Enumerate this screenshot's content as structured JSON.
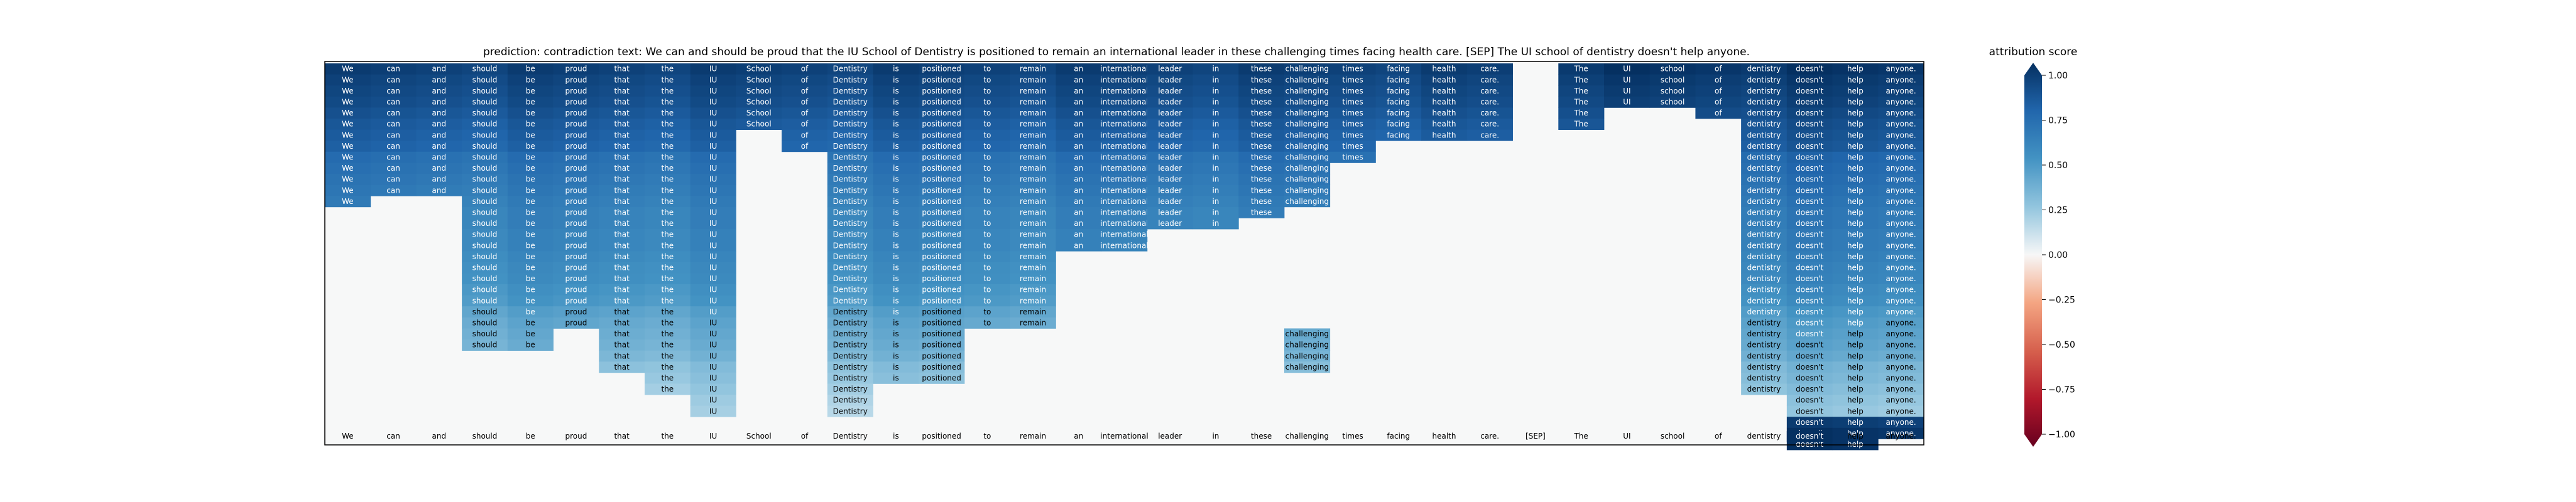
{
  "chart_data": {
    "type": "heatmap",
    "title": "prediction:  contradiction     text:  We can and should be proud that the IU School of Dentistry is positioned to remain an international leader in these challenging times facing health care. [SEP] The UI school of dentistry doesn't help anyone.",
    "tokens": [
      "We",
      "can",
      "and",
      "should",
      "be",
      "proud",
      "that",
      "the",
      "IU",
      "School",
      "of",
      "Dentistry",
      "is",
      "positioned",
      "to",
      "remain",
      "an",
      "international",
      "leader",
      "in",
      "these",
      "challenging",
      "times",
      "facing",
      "health",
      "care.",
      "[SEP]",
      "The",
      "UI",
      "school",
      "of",
      "dentistry",
      "doesn't",
      "help",
      "anyone."
    ],
    "hypothesis_token_count": 9,
    "row_spans": [
      [
        0,
        25,
        27,
        34
      ],
      [
        0,
        25,
        27,
        34
      ],
      [
        0,
        25,
        27,
        34
      ],
      [
        0,
        25,
        27,
        34
      ],
      [
        0,
        25,
        27,
        27,
        30,
        34
      ],
      [
        0,
        25,
        27,
        27,
        31,
        34
      ],
      [
        0,
        8,
        10,
        25,
        31,
        34
      ],
      [
        0,
        8,
        10,
        22,
        31,
        34
      ],
      [
        0,
        8,
        11,
        22,
        31,
        34
      ],
      [
        0,
        8,
        11,
        21,
        31,
        34
      ],
      [
        0,
        8,
        11,
        21,
        31,
        34
      ],
      [
        0,
        8,
        11,
        21,
        31,
        34
      ],
      [
        0,
        0,
        3,
        8,
        11,
        21,
        31,
        34
      ],
      [
        3,
        8,
        11,
        20,
        31,
        34
      ],
      [
        3,
        8,
        11,
        19,
        31,
        34
      ],
      [
        3,
        8,
        11,
        17,
        31,
        34
      ],
      [
        3,
        8,
        11,
        17,
        31,
        34
      ],
      [
        3,
        8,
        11,
        15,
        31,
        34
      ],
      [
        3,
        8,
        11,
        15,
        31,
        34
      ],
      [
        3,
        8,
        11,
        15,
        31,
        34
      ],
      [
        3,
        8,
        11,
        15,
        31,
        34
      ],
      [
        3,
        8,
        11,
        15,
        31,
        34
      ],
      [
        3,
        8,
        11,
        15,
        31,
        34
      ],
      [
        3,
        8,
        11,
        15,
        31,
        34
      ],
      [
        3,
        4,
        6,
        8,
        11,
        13,
        21,
        21,
        31,
        34
      ],
      [
        3,
        4,
        6,
        8,
        11,
        13,
        21,
        21,
        31,
        34
      ],
      [
        6,
        8,
        11,
        13,
        21,
        21,
        31,
        34
      ],
      [
        6,
        8,
        11,
        13,
        21,
        21,
        31,
        34
      ],
      [
        7,
        8,
        11,
        13,
        31,
        34
      ],
      [
        7,
        8,
        11,
        11,
        31,
        34
      ],
      [
        8,
        8,
        11,
        11,
        32,
        34
      ],
      [
        8,
        8,
        11,
        11,
        32,
        34
      ],
      [
        32,
        34
      ],
      [
        32,
        34
      ],
      [
        32,
        33
      ]
    ],
    "value_levels": [
      0.95,
      0.92,
      0.9,
      0.88,
      0.85,
      0.82,
      0.8,
      0.78,
      0.72,
      0.7,
      0.68,
      0.66,
      0.64,
      0.62,
      0.62,
      0.6,
      0.6,
      0.58,
      0.56,
      0.55,
      0.52,
      0.5,
      0.45,
      0.42,
      0.4,
      0.38,
      0.35,
      0.3,
      0.28,
      0.25,
      0.22,
      0.2,
      0.9,
      0.95,
      1.0
    ],
    "x_tick_labels": [
      "We",
      "can",
      "and",
      "should",
      "be",
      "proud",
      "that",
      "the",
      "IU",
      "School",
      "of",
      "Dentistry",
      "is",
      "positioned",
      "to",
      "remain",
      "an",
      "international",
      "leader",
      "in",
      "these",
      "challenging",
      "times",
      "facing",
      "health",
      "care.",
      "[SEP]",
      "The",
      "UI",
      "school",
      "of",
      "dentistry",
      "doesn't",
      "help",
      "anyone."
    ],
    "colorbar": {
      "label": "attribution score",
      "range": [
        -1.0,
        1.0
      ],
      "ticks": [
        1.0,
        0.75,
        0.5,
        0.25,
        0.0,
        -0.25,
        -0.5,
        -0.75,
        -1.0
      ],
      "tick_labels": [
        "1.00",
        "0.75",
        "0.50",
        "0.25",
        "0.00",
        "−0.25",
        "−0.50",
        "−0.75",
        "−1.00"
      ],
      "colormap": "RdBu"
    },
    "highlighted_tick": "doesn't",
    "colors": {
      "positive_dark": "#053061",
      "neutral": "#f7f7f7",
      "negative_dark": "#67001f",
      "empty_cell": "#f7f8f8"
    }
  }
}
